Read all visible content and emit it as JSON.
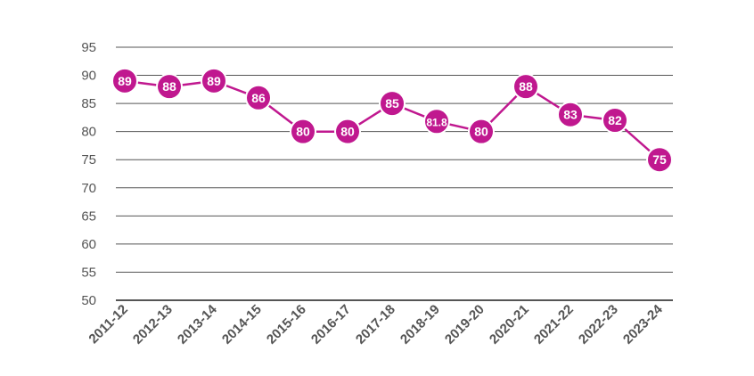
{
  "chart_data": {
    "type": "line",
    "title": "",
    "xlabel": "",
    "ylabel": "",
    "categories": [
      "2011-12",
      "2012-13",
      "2013-14",
      "2014-15",
      "2015-16",
      "2016-17",
      "2017-18",
      "2018-19",
      "2019-20",
      "2020-21",
      "2021-22",
      "2022-23",
      "2023-24"
    ],
    "series": [
      {
        "values": [
          89,
          88,
          89,
          86,
          80,
          80,
          85,
          81.8,
          80,
          88,
          83,
          82,
          75
        ],
        "labels": [
          "89",
          "88",
          "89",
          "86",
          "80",
          "80",
          "85",
          "81.8",
          "80",
          "88",
          "83",
          "82",
          "75"
        ]
      }
    ],
    "ylim": [
      50,
      95
    ],
    "yticks": [
      50,
      55,
      60,
      65,
      70,
      75,
      80,
      85,
      90,
      95
    ],
    "grid": true,
    "legend": "none",
    "colors": {
      "series": "#c0188f",
      "grid": "#555555",
      "label_text": "#ffffff",
      "tick_text": "#555555"
    }
  }
}
